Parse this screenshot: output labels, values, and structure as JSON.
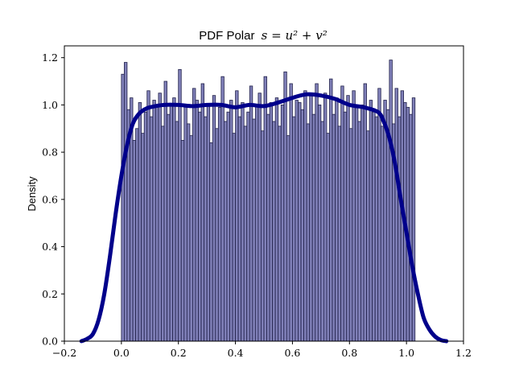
{
  "chart_data": {
    "type": "bar",
    "title_prefix": "PDF Polar",
    "title_math": "s = u² + v²",
    "title": "PDF Polar s = u^2 + v^2",
    "xlabel": "",
    "ylabel": "Density",
    "xlim": [
      -0.2,
      1.2
    ],
    "ylim": [
      0.0,
      1.25
    ],
    "xticks": [
      -0.2,
      0.0,
      0.2,
      0.4,
      0.6,
      0.8,
      1.0,
      1.2
    ],
    "xtick_labels": [
      "−0.2",
      "0.0",
      "0.2",
      "0.4",
      "0.6",
      "0.8",
      "1.0",
      "1.2"
    ],
    "yticks": [
      0.0,
      0.2,
      0.4,
      0.6,
      0.8,
      1.0,
      1.2
    ],
    "ytick_labels": [
      "0.0",
      "0.2",
      "0.4",
      "0.6",
      "0.8",
      "1.0",
      "1.2"
    ],
    "grid": false,
    "histogram": {
      "bin_start": 0.0,
      "bin_width": 0.01,
      "values": [
        1.13,
        1.18,
        0.98,
        1.03,
        0.85,
        0.9,
        1.01,
        0.88,
        0.97,
        1.06,
        0.95,
        1.02,
        0.99,
        1.05,
        0.91,
        1.1,
        0.96,
        1.0,
        1.03,
        0.93,
        1.15,
        0.85,
        1.0,
        0.92,
        0.87,
        1.07,
        1.02,
        0.97,
        1.09,
        0.95,
        1.0,
        0.84,
        1.04,
        0.9,
        0.99,
        1.12,
        0.93,
        0.97,
        1.02,
        0.88,
        1.06,
        0.95,
        1.01,
        0.91,
        0.97,
        1.08,
        0.94,
        1.0,
        1.05,
        0.89,
        1.12,
        0.96,
        1.01,
        0.93,
        1.03,
        0.91,
        1.0,
        1.14,
        0.87,
        1.09,
        0.95,
        1.02,
        1.01,
        0.98,
        1.06,
        0.92,
        1.04,
        0.96,
        1.09,
        1.0,
        0.93,
        1.05,
        0.88,
        1.11,
        0.96,
        1.03,
        0.91,
        1.08,
        0.97,
        1.04,
        0.9,
        1.06,
        0.99,
        0.93,
        1.0,
        1.09,
        0.89,
        1.02,
        0.97,
        0.95,
        1.07,
        0.91,
        1.02,
        0.98,
        1.19,
        0.92,
        1.07,
        0.95,
        1.06,
        1.01,
        0.99,
        0.96,
        1.03
      ],
      "bar_color": "#8080b8",
      "edge_color": "#20204a"
    },
    "density_curve": {
      "color": "#00008b",
      "x": [
        -0.14,
        -0.12,
        -0.1,
        -0.08,
        -0.06,
        -0.04,
        -0.02,
        0.0,
        0.02,
        0.04,
        0.06,
        0.08,
        0.1,
        0.15,
        0.2,
        0.25,
        0.3,
        0.35,
        0.4,
        0.45,
        0.5,
        0.55,
        0.6,
        0.65,
        0.7,
        0.75,
        0.8,
        0.85,
        0.9,
        0.92,
        0.94,
        0.96,
        0.98,
        1.0,
        1.02,
        1.04,
        1.06,
        1.08,
        1.1,
        1.12,
        1.14
      ],
      "y": [
        0.0,
        0.01,
        0.03,
        0.09,
        0.2,
        0.36,
        0.54,
        0.7,
        0.83,
        0.92,
        0.96,
        0.98,
        0.99,
        1.0,
        1.0,
        0.995,
        1.0,
        1.0,
        0.99,
        1.0,
        0.995,
        1.01,
        1.03,
        1.045,
        1.04,
        1.025,
        1.0,
        0.99,
        0.97,
        0.93,
        0.86,
        0.75,
        0.6,
        0.46,
        0.32,
        0.2,
        0.1,
        0.05,
        0.02,
        0.005,
        0.0
      ]
    }
  }
}
